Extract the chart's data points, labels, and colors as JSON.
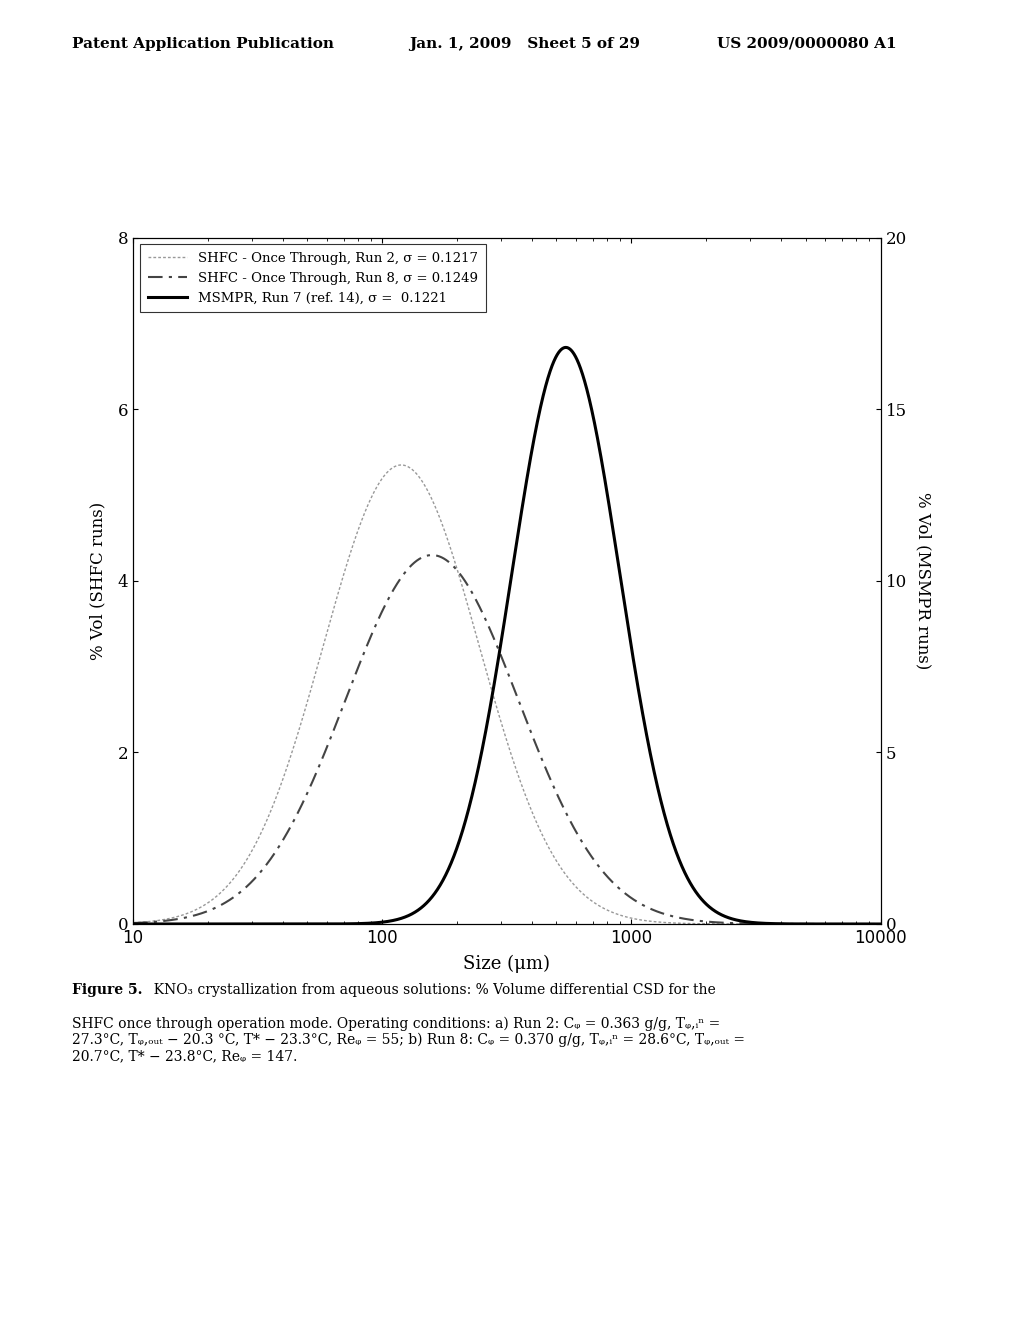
{
  "xlabel": "Size (μm)",
  "ylabel_left": "% Vol (SHFC runs)",
  "ylabel_right": "% Vol (MSMPR runs)",
  "ylim_left": [
    0,
    8
  ],
  "ylim_right": [
    0,
    20
  ],
  "xlim": [
    10,
    10000
  ],
  "yticks_left": [
    0,
    2,
    4,
    6,
    8
  ],
  "yticks_right": [
    0,
    5,
    10,
    15,
    20
  ],
  "xticks": [
    10,
    100,
    1000,
    10000
  ],
  "legend": [
    "SHFC - Once Through, Run 2, σ = 0.1217",
    "SHFC - Once Through, Run 8, σ = 0.1249",
    "MSMPR, Run 7 (ref. 14), σ =  0.1221"
  ],
  "header_left": "Patent Application Publication",
  "header_mid": "Jan. 1, 2009   Sheet 5 of 29",
  "header_right": "US 2009/0000080 A1",
  "run2_peak_x": 200,
  "run2_peak_y": 5.35,
  "run2_sigma": 0.72,
  "run8_peak_x": 300,
  "run8_peak_y": 4.3,
  "run8_sigma": 0.8,
  "msmpr_peak_x": 700,
  "msmpr_peak_y_right": 16.8,
  "msmpr_sigma": 0.5,
  "line1_color": "#999999",
  "line2_color": "#444444",
  "line3_color": "#000000",
  "background_color": "#ffffff"
}
